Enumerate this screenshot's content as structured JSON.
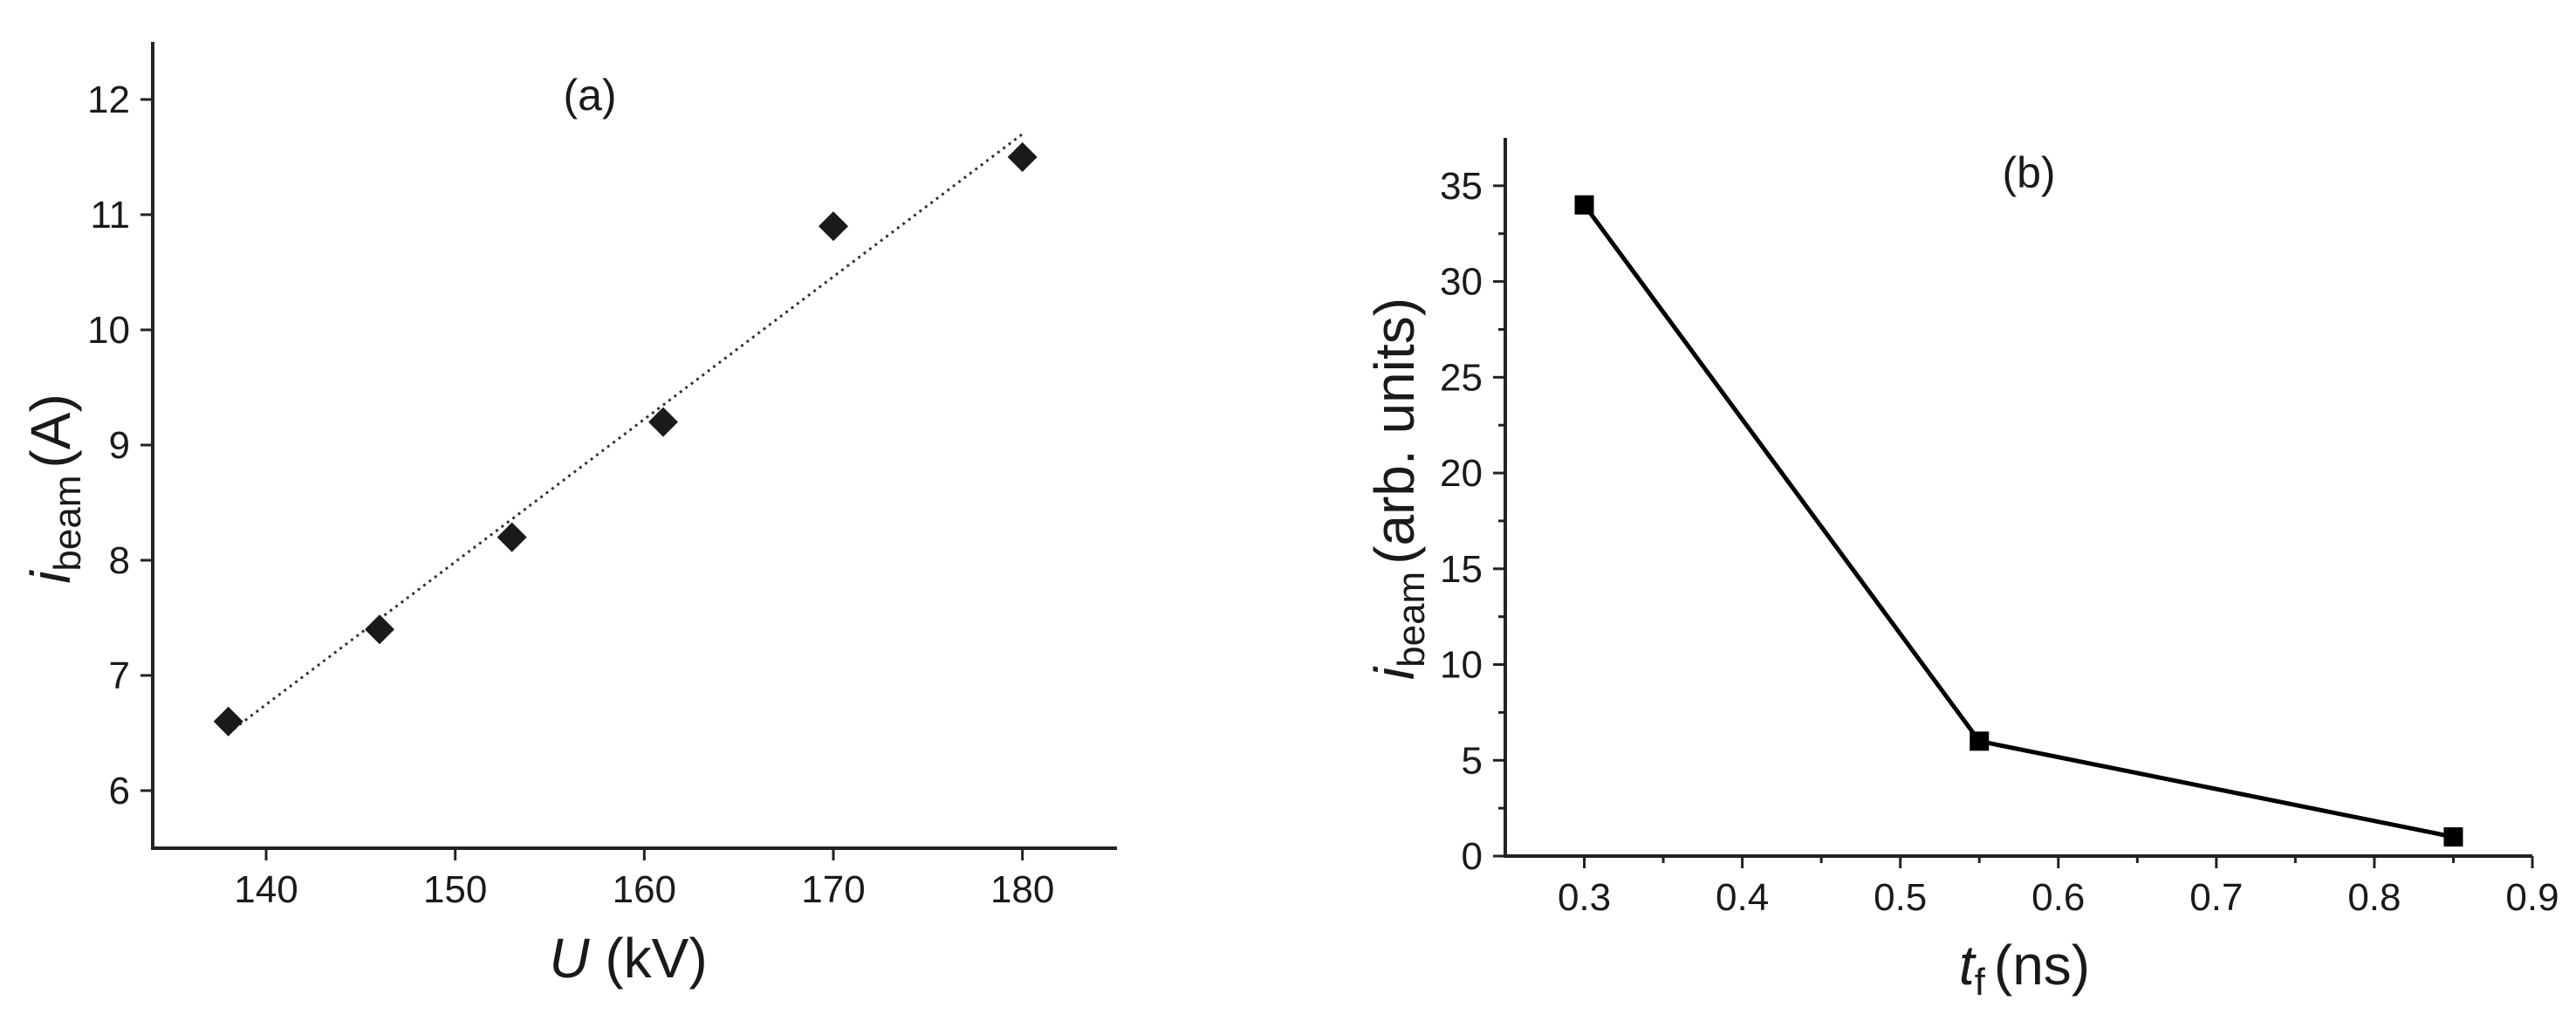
{
  "chart_data": [
    {
      "type": "scatter",
      "panel_label": "(a)",
      "xlabel": {
        "symbol": "U",
        "unit": "(kV)"
      },
      "ylabel": {
        "symbol": "i",
        "subscript": "beam",
        "unit": "(A)"
      },
      "xlim": [
        134,
        185
      ],
      "ylim": [
        5.5,
        12.5
      ],
      "xticks": [
        140,
        150,
        160,
        170,
        180
      ],
      "yticks": [
        6,
        7,
        8,
        9,
        10,
        11,
        12
      ],
      "grid": false,
      "series": [
        {
          "marker": "diamond",
          "color": "#1a1a1a",
          "points": [
            {
              "x": 138,
              "y": 6.6
            },
            {
              "x": 146,
              "y": 7.4
            },
            {
              "x": 153,
              "y": 8.2
            },
            {
              "x": 161,
              "y": 9.2
            },
            {
              "x": 170,
              "y": 10.9
            },
            {
              "x": 180,
              "y": 11.5
            }
          ]
        }
      ],
      "trendline": {
        "style": "dotted",
        "color": "#333333",
        "x": [
          138,
          180
        ],
        "y": [
          6.5,
          11.7
        ]
      }
    },
    {
      "type": "line",
      "panel_label": "(b)",
      "xlabel": {
        "symbol": "t",
        "subscript": "f",
        "unit": "(ns)"
      },
      "ylabel": {
        "symbol": "i",
        "subscript": "beam",
        "unit": "(arb. units)"
      },
      "xlim": [
        0.25,
        0.9
      ],
      "ylim": [
        0,
        37.5
      ],
      "xticks": [
        0.3,
        0.4,
        0.5,
        0.6,
        0.7,
        0.8,
        0.9
      ],
      "yticks": [
        0,
        5,
        10,
        15,
        20,
        25,
        30,
        35
      ],
      "grid": false,
      "series": [
        {
          "marker": "square",
          "color": "#000000",
          "points": [
            {
              "x": 0.3,
              "y": 34
            },
            {
              "x": 0.55,
              "y": 6
            },
            {
              "x": 0.85,
              "y": 1
            }
          ]
        }
      ]
    }
  ]
}
